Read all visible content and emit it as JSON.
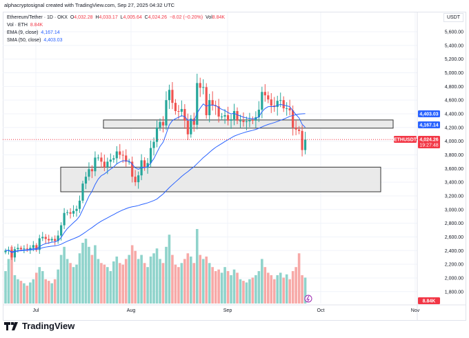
{
  "caption": "alphacryptosignal created with TradingView.com, Sep 27, 2025 04:32 UTC",
  "legend": {
    "symbol": "Ethereum/Tether · 1D · OKX",
    "o_label": "O",
    "o": "4,032.28",
    "h_label": "H",
    "h": "4,033.17",
    "l_label": "L",
    "l": "4,005.64",
    "c_label": "C",
    "c": "4,024.26",
    "change": "−8.02 (−0.20%)",
    "vol_label": "Vol",
    "vol": "8.84K",
    "vol_title": "Vol · ETH",
    "vol_value": "8.84K",
    "ema_title": "EMA (9, close)",
    "ema_value": "4,167.14",
    "sma_title": "SMA (50, close)",
    "sma_value": "4,403.03"
  },
  "currency": "USDT",
  "price_axis": [
    "5,600.00",
    "5,400.00",
    "5,200.00",
    "5,000.00",
    "4,800.00",
    "4,600.00",
    "4,400.00",
    "4,200.00",
    "4,000.00",
    "3,800.00",
    "3,600.00",
    "3,400.00",
    "3,200.00",
    "3,000.00",
    "2,800.00",
    "2,600.00",
    "2,400.00",
    "2,200.00",
    "2,000.00",
    "1,800.00"
  ],
  "time_axis": [
    "Jul",
    "Aug",
    "Sep",
    "Oct",
    "Nov"
  ],
  "badges": {
    "sma": "4,403.03",
    "ema": "4,167.14",
    "symbol": "ETHUSDT",
    "price": "4,024.26",
    "countdown": "19:27:48",
    "volume": "8.84K"
  },
  "colors": {
    "up": "#26a69a",
    "down": "#ef5350",
    "vol_up": "#8fd3cb",
    "vol_down": "#f7a9a7",
    "ema": "#2962ff",
    "sma": "#2962ff",
    "badge_blue": "#2962ff",
    "badge_red": "#f23645"
  },
  "zones": [
    {
      "top": 4310,
      "bottom": 4190
    },
    {
      "top": 3620,
      "bottom": 3260
    }
  ],
  "chart_data": {
    "type": "candlestick",
    "start": "2025-06-21",
    "closes": [
      2400,
      2410,
      2300,
      2420,
      2440,
      2420,
      2430,
      2420,
      2440,
      2480,
      2410,
      2580,
      2600,
      2570,
      2550,
      2570,
      2540,
      2620,
      2770,
      2950,
      2960,
      2940,
      2980,
      3010,
      3130,
      3380,
      3480,
      3590,
      3560,
      3760,
      3760,
      3700,
      3620,
      3700,
      3730,
      3750,
      3850,
      3800,
      3790,
      3700,
      3700,
      3480,
      3400,
      3500,
      3720,
      3610,
      3680,
      3900,
      3990,
      4200,
      4280,
      4230,
      4600,
      4750,
      4560,
      4440,
      4430,
      4470,
      4300,
      4100,
      4330,
      4240,
      4850,
      4780,
      4790,
      4380,
      4600,
      4520,
      4510,
      4360,
      4360,
      4380,
      4300,
      4320,
      4440,
      4300,
      4300,
      4280,
      4290,
      4310,
      4300,
      4350,
      4460,
      4720,
      4670,
      4610,
      4520,
      4500,
      4590,
      4600,
      4480,
      4480,
      4450,
      4200,
      4170,
      4150,
      3870,
      4024
    ],
    "volumes": [
      40,
      55,
      70,
      35,
      30,
      28,
      25,
      22,
      26,
      30,
      38,
      45,
      40,
      30,
      28,
      25,
      30,
      42,
      60,
      70,
      55,
      50,
      45,
      48,
      62,
      75,
      80,
      70,
      60,
      72,
      55,
      50,
      48,
      45,
      40,
      52,
      58,
      50,
      48,
      55,
      60,
      72,
      65,
      55,
      60,
      50,
      45,
      58,
      62,
      68,
      55,
      50,
      70,
      85,
      60,
      48,
      45,
      50,
      55,
      62,
      58,
      50,
      92,
      60,
      55,
      58,
      50,
      45,
      40,
      42,
      38,
      45,
      40,
      35,
      42,
      38,
      30,
      28,
      26,
      30,
      32,
      35,
      40,
      55,
      45,
      38,
      35,
      30,
      35,
      38,
      32,
      36,
      30,
      40,
      45,
      62,
      35,
      32
    ]
  }
}
